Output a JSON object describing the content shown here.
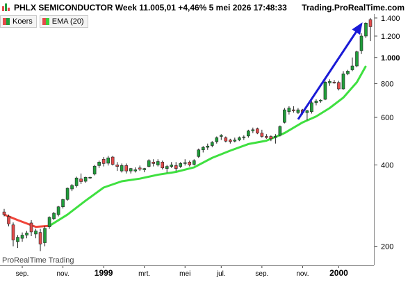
{
  "header": {
    "title": "PHLX SEMICONDUCTOR Week 11.005,01 +4,46% 5 mei 2026 17:48:33",
    "brand": "Trading.ProRealTime.com",
    "icon": "candlestick-logo-icon"
  },
  "legend": [
    {
      "label": "Koers",
      "icon": "candlestick-icon",
      "color": "#2ea02e"
    },
    {
      "label": "EMA (20)",
      "icon": "ema-icon",
      "color": "#3ccf3c"
    }
  ],
  "watermark": "ProRealTime Trading",
  "chart_data": {
    "type": "candlestick",
    "log_scale": true,
    "ylim": [
      170,
      1450
    ],
    "grid": false,
    "colors": {
      "up": "#1f9d3a",
      "down": "#e34b4b",
      "ema_up": "#3fe040",
      "ema_down": "#f0453a",
      "arrow": "#1a1ad6"
    },
    "y_ticks": [
      {
        "value": 200,
        "label": "200",
        "bold": false
      },
      {
        "value": 400,
        "label": "400",
        "bold": false
      },
      {
        "value": 600,
        "label": "600",
        "bold": false
      },
      {
        "value": 800,
        "label": "800",
        "bold": false
      },
      {
        "value": 1000,
        "label": "1.000",
        "bold": true
      },
      {
        "value": 1200,
        "label": "1.200",
        "bold": false
      },
      {
        "value": 1400,
        "label": "1.400",
        "bold": false
      }
    ],
    "x_ticks": [
      {
        "index": 4,
        "label": "sep.",
        "bold": false
      },
      {
        "index": 13,
        "label": "nov.",
        "bold": false
      },
      {
        "index": 22,
        "label": "1999",
        "bold": true
      },
      {
        "index": 31,
        "label": "mrt.",
        "bold": false
      },
      {
        "index": 40,
        "label": "mei",
        "bold": false
      },
      {
        "index": 48,
        "label": "jul.",
        "bold": false
      },
      {
        "index": 57,
        "label": "sep.",
        "bold": false
      },
      {
        "index": 66,
        "label": "nov.",
        "bold": false
      },
      {
        "index": 74,
        "label": "2000",
        "bold": true
      }
    ],
    "candles": [
      {
        "o": 268,
        "h": 275,
        "l": 258,
        "c": 262
      },
      {
        "o": 258,
        "h": 262,
        "l": 237,
        "c": 242
      },
      {
        "o": 240,
        "h": 245,
        "l": 200,
        "c": 211
      },
      {
        "o": 208,
        "h": 220,
        "l": 197,
        "c": 216
      },
      {
        "o": 214,
        "h": 225,
        "l": 208,
        "c": 220
      },
      {
        "o": 220,
        "h": 228,
        "l": 214,
        "c": 224
      },
      {
        "o": 244,
        "h": 250,
        "l": 218,
        "c": 226
      },
      {
        "o": 222,
        "h": 232,
        "l": 214,
        "c": 228
      },
      {
        "o": 225,
        "h": 232,
        "l": 192,
        "c": 204
      },
      {
        "o": 206,
        "h": 238,
        "l": 200,
        "c": 233
      },
      {
        "o": 236,
        "h": 258,
        "l": 232,
        "c": 256
      },
      {
        "o": 253,
        "h": 268,
        "l": 250,
        "c": 265
      },
      {
        "o": 262,
        "h": 282,
        "l": 258,
        "c": 280
      },
      {
        "o": 280,
        "h": 300,
        "l": 276,
        "c": 298
      },
      {
        "o": 298,
        "h": 330,
        "l": 295,
        "c": 328
      },
      {
        "o": 326,
        "h": 340,
        "l": 320,
        "c": 336
      },
      {
        "o": 335,
        "h": 362,
        "l": 330,
        "c": 358
      },
      {
        "o": 355,
        "h": 372,
        "l": 340,
        "c": 347
      },
      {
        "o": 348,
        "h": 362,
        "l": 344,
        "c": 360
      },
      {
        "o": 360,
        "h": 362,
        "l": 355,
        "c": 360
      },
      {
        "o": 370,
        "h": 400,
        "l": 366,
        "c": 396
      },
      {
        "o": 398,
        "h": 415,
        "l": 390,
        "c": 410
      },
      {
        "o": 420,
        "h": 428,
        "l": 395,
        "c": 405
      },
      {
        "o": 406,
        "h": 432,
        "l": 398,
        "c": 425
      },
      {
        "o": 428,
        "h": 432,
        "l": 398,
        "c": 402
      },
      {
        "o": 400,
        "h": 410,
        "l": 380,
        "c": 395
      },
      {
        "o": 380,
        "h": 405,
        "l": 375,
        "c": 398
      },
      {
        "o": 398,
        "h": 405,
        "l": 372,
        "c": 380
      },
      {
        "o": 380,
        "h": 390,
        "l": 372,
        "c": 388
      },
      {
        "o": 380,
        "h": 392,
        "l": 375,
        "c": 384
      },
      {
        "o": 390,
        "h": 398,
        "l": 380,
        "c": 386
      },
      {
        "o": 384,
        "h": 390,
        "l": 376,
        "c": 388
      },
      {
        "o": 395,
        "h": 420,
        "l": 392,
        "c": 415
      },
      {
        "o": 410,
        "h": 420,
        "l": 395,
        "c": 405
      },
      {
        "o": 400,
        "h": 420,
        "l": 395,
        "c": 412
      },
      {
        "o": 410,
        "h": 415,
        "l": 385,
        "c": 390
      },
      {
        "o": 388,
        "h": 400,
        "l": 375,
        "c": 395
      },
      {
        "o": 395,
        "h": 410,
        "l": 390,
        "c": 400
      },
      {
        "o": 398,
        "h": 410,
        "l": 380,
        "c": 388
      },
      {
        "o": 395,
        "h": 410,
        "l": 390,
        "c": 405
      },
      {
        "o": 405,
        "h": 420,
        "l": 398,
        "c": 408
      },
      {
        "o": 410,
        "h": 415,
        "l": 395,
        "c": 400
      },
      {
        "o": 402,
        "h": 420,
        "l": 398,
        "c": 415
      },
      {
        "o": 430,
        "h": 460,
        "l": 425,
        "c": 455
      },
      {
        "o": 455,
        "h": 470,
        "l": 445,
        "c": 465
      },
      {
        "o": 465,
        "h": 480,
        "l": 455,
        "c": 470
      },
      {
        "o": 472,
        "h": 490,
        "l": 465,
        "c": 485
      },
      {
        "o": 488,
        "h": 510,
        "l": 480,
        "c": 505
      },
      {
        "o": 510,
        "h": 520,
        "l": 495,
        "c": 515
      },
      {
        "o": 505,
        "h": 510,
        "l": 485,
        "c": 490
      },
      {
        "o": 495,
        "h": 500,
        "l": 480,
        "c": 488
      },
      {
        "o": 490,
        "h": 505,
        "l": 485,
        "c": 495
      },
      {
        "o": 495,
        "h": 510,
        "l": 490,
        "c": 505
      },
      {
        "o": 505,
        "h": 515,
        "l": 495,
        "c": 508
      },
      {
        "o": 512,
        "h": 540,
        "l": 505,
        "c": 535
      },
      {
        "o": 535,
        "h": 550,
        "l": 525,
        "c": 540
      },
      {
        "o": 545,
        "h": 550,
        "l": 520,
        "c": 525
      },
      {
        "o": 525,
        "h": 540,
        "l": 505,
        "c": 510
      },
      {
        "o": 510,
        "h": 520,
        "l": 500,
        "c": 505
      },
      {
        "o": 510,
        "h": 515,
        "l": 490,
        "c": 500
      },
      {
        "o": 505,
        "h": 520,
        "l": 480,
        "c": 510
      },
      {
        "o": 515,
        "h": 560,
        "l": 510,
        "c": 555
      },
      {
        "o": 575,
        "h": 650,
        "l": 570,
        "c": 640
      },
      {
        "o": 630,
        "h": 660,
        "l": 615,
        "c": 650
      },
      {
        "o": 640,
        "h": 660,
        "l": 625,
        "c": 635
      },
      {
        "o": 625,
        "h": 650,
        "l": 618,
        "c": 640
      },
      {
        "o": 640,
        "h": 645,
        "l": 615,
        "c": 625
      },
      {
        "o": 625,
        "h": 640,
        "l": 585,
        "c": 635
      },
      {
        "o": 630,
        "h": 690,
        "l": 620,
        "c": 680
      },
      {
        "o": 680,
        "h": 700,
        "l": 665,
        "c": 690
      },
      {
        "o": 690,
        "h": 700,
        "l": 680,
        "c": 695
      },
      {
        "o": 700,
        "h": 820,
        "l": 695,
        "c": 810
      },
      {
        "o": 805,
        "h": 830,
        "l": 785,
        "c": 815
      },
      {
        "o": 810,
        "h": 825,
        "l": 800,
        "c": 805
      },
      {
        "o": 808,
        "h": 820,
        "l": 755,
        "c": 765
      },
      {
        "o": 765,
        "h": 890,
        "l": 760,
        "c": 870
      },
      {
        "o": 870,
        "h": 900,
        "l": 860,
        "c": 890
      },
      {
        "o": 900,
        "h": 1000,
        "l": 890,
        "c": 930
      },
      {
        "o": 930,
        "h": 1060,
        "l": 920,
        "c": 1050
      },
      {
        "o": 1060,
        "h": 1230,
        "l": 1030,
        "c": 1200
      },
      {
        "o": 1200,
        "h": 1350,
        "l": 1180,
        "c": 1340
      },
      {
        "o": 1380,
        "h": 1400,
        "l": 1150,
        "c": 1300
      }
    ],
    "ema": [
      {
        "index": 0,
        "value": 262
      },
      {
        "index": 3,
        "value": 250
      },
      {
        "index": 7,
        "value": 236
      },
      {
        "index": 10,
        "value": 238
      },
      {
        "index": 14,
        "value": 262
      },
      {
        "index": 18,
        "value": 295
      },
      {
        "index": 22,
        "value": 330
      },
      {
        "index": 26,
        "value": 348
      },
      {
        "index": 30,
        "value": 356
      },
      {
        "index": 34,
        "value": 368
      },
      {
        "index": 38,
        "value": 377
      },
      {
        "index": 42,
        "value": 392
      },
      {
        "index": 46,
        "value": 425
      },
      {
        "index": 50,
        "value": 452
      },
      {
        "index": 54,
        "value": 478
      },
      {
        "index": 58,
        "value": 492
      },
      {
        "index": 62,
        "value": 525
      },
      {
        "index": 66,
        "value": 575
      },
      {
        "index": 69,
        "value": 605
      },
      {
        "index": 72,
        "value": 650
      },
      {
        "index": 75,
        "value": 710
      },
      {
        "index": 78,
        "value": 810
      },
      {
        "index": 80,
        "value": 930
      }
    ],
    "ema_turn_index": 10,
    "arrow": {
      "from": {
        "index": 65,
        "value": 590
      },
      "to": {
        "index": 79,
        "value": 1330
      }
    }
  }
}
